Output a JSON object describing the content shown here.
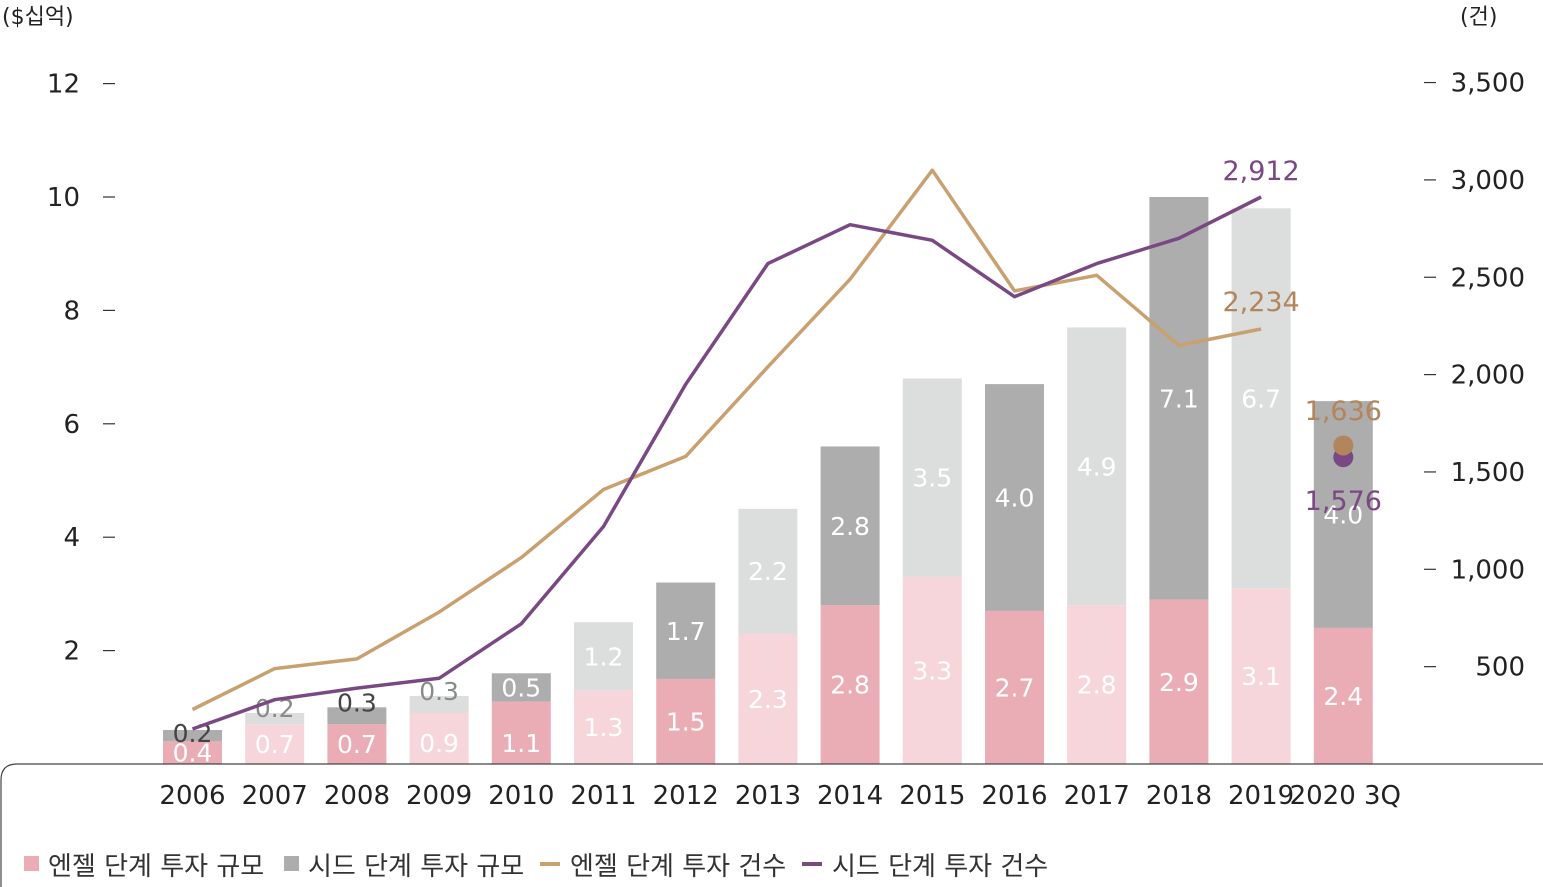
{
  "chart_data": {
    "type": "bar",
    "y_left_unit": "($십억)",
    "y_right_unit": "(건)",
    "y_left_ticks": [
      "2",
      "4",
      "6",
      "8",
      "10",
      "12"
    ],
    "y_right_ticks": [
      "500",
      "1,000",
      "1,500",
      "2,000",
      "2,500",
      "3,000",
      "3,500"
    ],
    "ylim_left": [
      0,
      12
    ],
    "ylim_right": [
      0,
      3500
    ],
    "categories": [
      "2006",
      "2007",
      "2008",
      "2009",
      "2010",
      "2011",
      "2012",
      "2013",
      "2014",
      "2015",
      "2016",
      "2017",
      "2018",
      "2019",
      "2020 3Q"
    ],
    "series": [
      {
        "name": "엔젤 단계 투자 규모",
        "kind": "bar",
        "values": [
          0.4,
          0.7,
          0.7,
          0.9,
          1.1,
          1.3,
          1.5,
          2.3,
          2.8,
          3.3,
          2.7,
          2.8,
          2.9,
          3.1,
          2.4
        ],
        "labels": [
          "0.4",
          "0.7",
          "0.7",
          "0.9",
          "1.1",
          "1.3",
          "1.5",
          "2.3",
          "2.8",
          "3.3",
          "2.7",
          "2.8",
          "2.9",
          "3.1",
          "2.4"
        ]
      },
      {
        "name": "시드 단계 투자 규모",
        "kind": "bar",
        "values": [
          0.2,
          0.2,
          0.3,
          0.3,
          0.5,
          1.2,
          1.7,
          2.2,
          2.8,
          3.5,
          4.0,
          4.9,
          7.1,
          6.7,
          4.0
        ],
        "labels": [
          "0.2",
          "0.2",
          "0.3",
          "0.3",
          "0.5",
          "1.2",
          "1.7",
          "2.2",
          "2.8",
          "3.5",
          "4.0",
          "4.9",
          "7.1",
          "6.7",
          "4.0"
        ]
      },
      {
        "name": "엔젤 단계 투자 건수",
        "kind": "line",
        "axis": "right",
        "values": [
          280,
          490,
          540,
          780,
          1060,
          1410,
          1580,
          2040,
          2490,
          3050,
          2430,
          2510,
          2150,
          2234,
          1636
        ]
      },
      {
        "name": "시드 단계 투자 건수",
        "kind": "line",
        "axis": "right",
        "values": [
          180,
          330,
          390,
          440,
          720,
          1220,
          1950,
          2570,
          2770,
          2690,
          2400,
          2570,
          2700,
          2912,
          1576
        ]
      }
    ],
    "annotations": {
      "angel_2019": "2,234",
      "seed_2019": "2,912",
      "angel_2020": "1,636",
      "seed_2020": "1,576"
    },
    "colors": {
      "angel_bar_dark": "#ebadb5",
      "angel_bar_light": "#f6d6db",
      "seed_bar_dark": "#adadad",
      "seed_bar_light": "#dcdddd",
      "angel_line": "#c9a06f",
      "seed_line": "#7a4883",
      "angel_annotation": "#b3855a",
      "seed_annotation": "#7a4883"
    },
    "legend_position": "bottom-left",
    "grid": false
  }
}
